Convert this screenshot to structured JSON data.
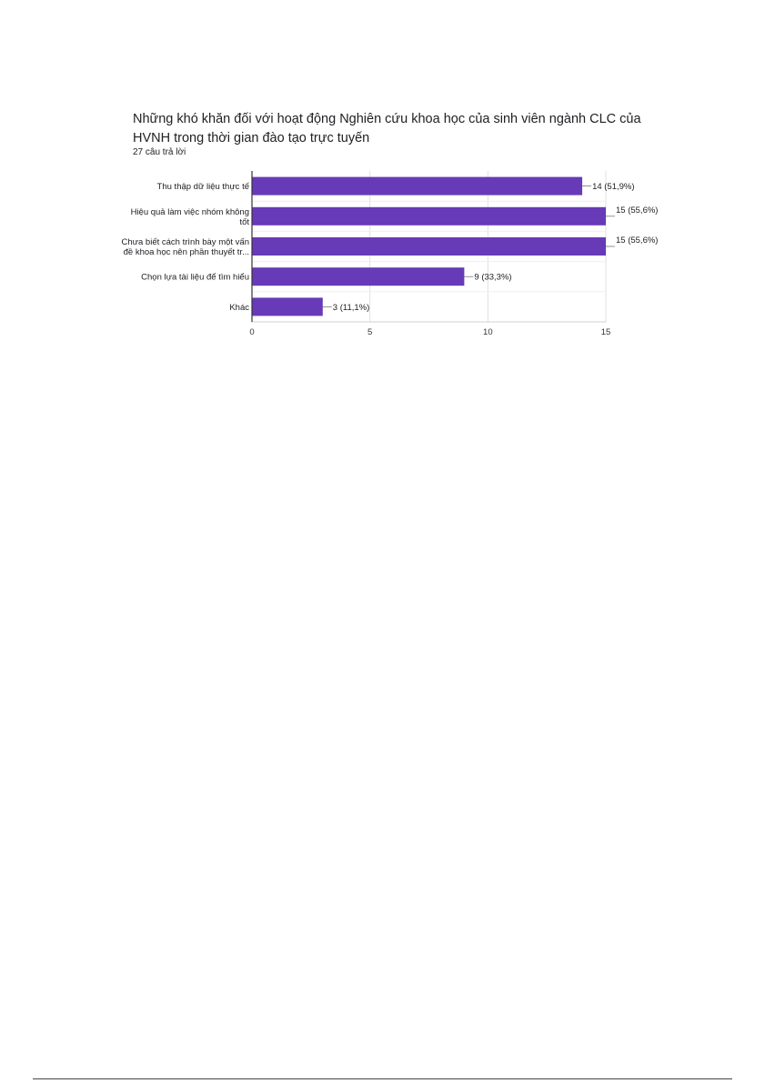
{
  "chart_data": {
    "type": "bar",
    "orientation": "horizontal",
    "title": "Những khó khăn đối với hoạt động Nghiên cứu khoa học của sinh viên ngành CLC của HVNH trong thời gian đào tạo trực tuyến",
    "subtitle": "27 câu trả lời",
    "categories": [
      [
        "Thu thập dữ liệu thực tế"
      ],
      [
        "Hiệu quả làm việc nhóm không",
        "tốt"
      ],
      [
        "Chưa biết cách trình bày một vấn",
        "đề khoa học nên phần thuyết tr..."
      ],
      [
        "Chọn lựa tài liệu để tìm hiểu"
      ],
      [
        "Khác"
      ]
    ],
    "values": [
      14,
      15,
      15,
      9,
      3
    ],
    "value_labels": [
      "14 (51,9%)",
      "15 (55,6%)",
      "15 (55,6%)",
      "9 (33,3%)",
      "3 (11,1%)"
    ],
    "xlim": [
      0,
      15
    ],
    "xticks": [
      0,
      5,
      10,
      15
    ],
    "grid": true,
    "bar_color": "#673ab7"
  }
}
